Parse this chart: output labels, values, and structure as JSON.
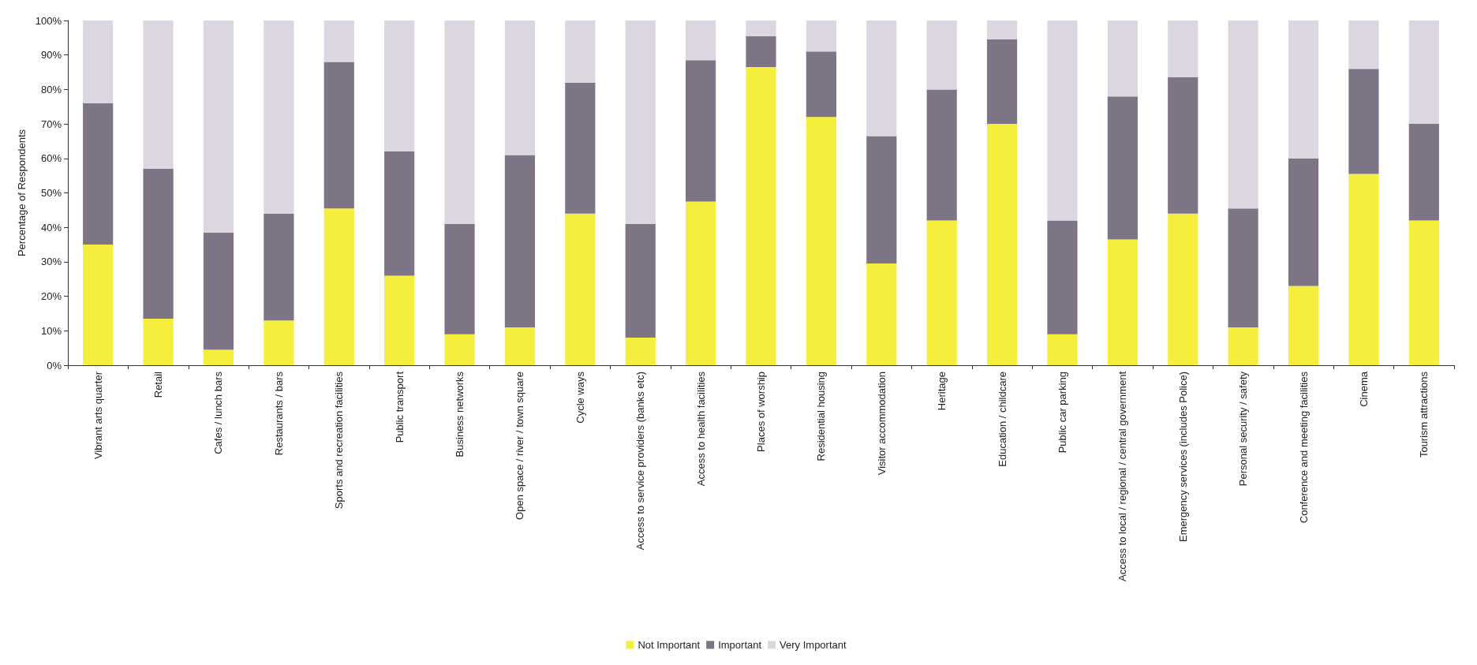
{
  "chart_data": {
    "type": "bar",
    "stacked": true,
    "ylabel": "Percentage of Respondents",
    "categories": [
      "Vibrant arts quarter",
      "Retail",
      "Cafes / lunch bars",
      "Restaurants / bars",
      "Sports and recreation facilities",
      "Public transport",
      "Business networks",
      "Open space / river / town square",
      "Cycle ways",
      "Access to service providers (banks etc)",
      "Access to health facilities",
      "Places of worship",
      "Residential housing",
      "Visitor accommodation",
      "Heritage",
      "Education / childcare",
      "Public car parking",
      "Access to local / regional / central government",
      "Emergency services (includes Police)",
      "Personal security / safety",
      "Conference and meeting facilities",
      "Cinema",
      "Tourism attractions"
    ],
    "series": [
      {
        "name": "Not Important",
        "color": "#f5ee3c",
        "values": [
          35,
          13.5,
          4.5,
          13,
          45.5,
          26,
          9,
          11,
          44,
          8,
          47.5,
          86.5,
          72,
          29.5,
          42,
          70,
          9,
          36.5,
          44,
          11,
          23,
          55.5,
          42
        ]
      },
      {
        "name": "Important",
        "color": "#7d7585",
        "values": [
          41,
          43.5,
          34,
          31,
          42.5,
          36,
          32,
          50,
          38,
          33,
          41,
          9,
          19,
          37,
          38,
          24.5,
          33,
          41.5,
          39.5,
          34.5,
          37,
          30.5,
          28
        ]
      },
      {
        "name": "Very Important",
        "color": "#dcd6e0",
        "values": [
          24,
          43,
          61.5,
          56,
          12,
          38,
          59,
          39,
          18,
          59,
          11.5,
          4.5,
          9,
          33.5,
          20,
          5.5,
          58,
          22,
          16.5,
          54.5,
          40,
          14,
          30
        ]
      }
    ],
    "ylim": [
      0,
      100
    ],
    "yticks": [
      {
        "value": 0,
        "label": "0%"
      },
      {
        "value": 10,
        "label": "10%"
      },
      {
        "value": 20,
        "label": "20%"
      },
      {
        "value": 30,
        "label": "30%"
      },
      {
        "value": 40,
        "label": "40%"
      },
      {
        "value": 50,
        "label": "50%"
      },
      {
        "value": 60,
        "label": "60%"
      },
      {
        "value": 70,
        "label": "70%"
      },
      {
        "value": 80,
        "label": "80%"
      },
      {
        "value": 90,
        "label": "90%"
      },
      {
        "value": 100,
        "label": "100%"
      }
    ],
    "grid": false,
    "legend": "bottom"
  }
}
